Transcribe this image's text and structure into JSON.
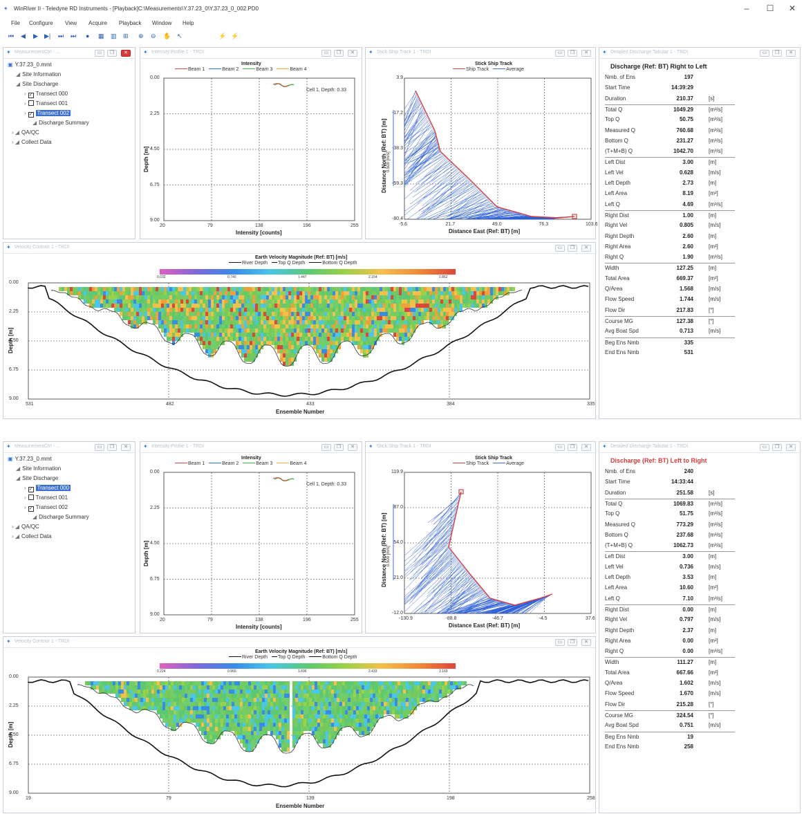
{
  "window": {
    "title": "WinRiver II - Teledyne RD Instruments - [Playback]C:\\Measurements\\Y.37.23_0\\Y.37.23_0_002.PD0"
  },
  "menu": [
    "File",
    "Configure",
    "View",
    "Acquire",
    "Playback",
    "Window",
    "Help"
  ],
  "colors": {
    "beam1": "#e04545",
    "beam2": "#3a6fd6",
    "beam3": "#48b04a",
    "beam4": "#f0b030",
    "track": "#d94040",
    "average": "#3a6fd6",
    "fill": "#2d5fd6"
  },
  "blocks": [
    {
      "tree": {
        "panel_title": "MeasurementCtrl - ...",
        "root": "Y.37.23_0.mmt",
        "site_information": "Site Information",
        "site_discharge": "Site Discharge",
        "transects": [
          {
            "label": "Transect 000",
            "checked": true,
            "selected": false
          },
          {
            "label": "Transect 001",
            "checked": false,
            "selected": false
          },
          {
            "label": "Transect 002",
            "checked": true,
            "selected": true
          }
        ],
        "discharge_summary": "Discharge Summary",
        "qaqc": "QA/QC",
        "collect": "Collect Data"
      },
      "intensity": {
        "panel_title": "Intensity Profile 1 - TRDI",
        "title": "Intensity",
        "legend": [
          "Beam 1",
          "Beam 2",
          "Beam 3",
          "Beam 4"
        ],
        "annotation": "Cell 1, Depth: 0.33",
        "y_ticks": [
          "0.00",
          "2.25",
          "4.50",
          "6.75",
          "9.00"
        ],
        "x_ticks": [
          "20",
          "79",
          "138",
          "196",
          "255"
        ],
        "xlabel": "Intensity [counts]",
        "ylabel": "Depth [m]"
      },
      "track": {
        "panel_title": "Stick Ship Track 1 - TRDI",
        "title": "Stick Ship Track",
        "legend": [
          "Ship Track",
          "Average"
        ],
        "scale_label": "0.500 [m/s]",
        "y_ticks": [
          "3.9",
          "-17.2",
          "-38.3",
          "-59.3",
          "-80.4"
        ],
        "x_ticks": [
          "-5.6",
          "21.7",
          "49.0",
          "76.3",
          "103.6"
        ],
        "xlabel": "Distance East (Ref: BT) [m]",
        "ylabel": "Distance North (Ref: BT) [m]"
      },
      "contour": {
        "panel_title": "Velocity Contour 1 - TRDI",
        "title": "Earth Velocity Magnitude (Ref: BT) [m/s]",
        "legend": [
          "River Depth",
          "Top Q Depth",
          "Bottom Q Depth"
        ],
        "scale_ticks": [
          "0.032",
          "0.740",
          "1.447",
          "2.154",
          "2.862"
        ],
        "y_ticks": [
          "0.00",
          "2.25",
          "4.50",
          "6.75",
          "9.00"
        ],
        "x_ticks": [
          "531",
          "482",
          "433",
          "384",
          "335"
        ],
        "xlabel": "Ensemble Number",
        "ylabel": "Depth [m]"
      },
      "tabular": {
        "panel_title": "Detailed Discharge Tabular 1 - TRDI",
        "heading": "Discharge (Ref: BT) Right to Left",
        "heading_color": "#222222",
        "rows": [
          {
            "k": "Nmb. of Ens",
            "v": "197",
            "u": ""
          },
          {
            "k": "Start Time",
            "v": "14:39:29",
            "u": ""
          },
          {
            "k": "Duration",
            "v": "210.37",
            "u": "[s]"
          },
          {
            "k": "Total Q",
            "v": "1049.29",
            "u": "[m³/s]",
            "sep": true
          },
          {
            "k": "Top Q",
            "v": "50.75",
            "u": "[m³/s]"
          },
          {
            "k": "Measured Q",
            "v": "760.68",
            "u": "[m³/s]"
          },
          {
            "k": "Bottom Q",
            "v": "231.27",
            "u": "[m³/s]"
          },
          {
            "k": "(T+M+B) Q",
            "v": "1042.70",
            "u": "[m³/s]"
          },
          {
            "k": "Left Dist",
            "v": "3.00",
            "u": "[m]",
            "sep": true
          },
          {
            "k": "Left Vel",
            "v": "0.628",
            "u": "[m/s]"
          },
          {
            "k": "Left Depth",
            "v": "2.73",
            "u": "[m]"
          },
          {
            "k": "Left Area",
            "v": "8.19",
            "u": "[m²]"
          },
          {
            "k": "Left Q",
            "v": "4.69",
            "u": "[m³/s]"
          },
          {
            "k": "Right Dist",
            "v": "1.00",
            "u": "[m]",
            "sep": true
          },
          {
            "k": "Right Vel",
            "v": "0.805",
            "u": "[m/s]"
          },
          {
            "k": "Right Depth",
            "v": "2.60",
            "u": "[m]"
          },
          {
            "k": "Right Area",
            "v": "2.60",
            "u": "[m²]"
          },
          {
            "k": "Right Q",
            "v": "1.90",
            "u": "[m³/s]"
          },
          {
            "k": "Width",
            "v": "127.25",
            "u": "[m]",
            "sep": true
          },
          {
            "k": "Total Area",
            "v": "669.37",
            "u": "[m²]"
          },
          {
            "k": "Q/Area",
            "v": "1.568",
            "u": "[m/s]"
          },
          {
            "k": "Flow Speed",
            "v": "1.744",
            "u": "[m/s]"
          },
          {
            "k": "Flow Dir",
            "v": "217.83",
            "u": "[°]"
          },
          {
            "k": "Course MG",
            "v": "127.38",
            "u": "[°]",
            "sep": true
          },
          {
            "k": "Avg Boat Spd",
            "v": "0.713",
            "u": "[m/s]"
          },
          {
            "k": "Beg Ens Nmb",
            "v": "335",
            "u": "",
            "sep": true
          },
          {
            "k": "End Ens Nmb",
            "v": "531",
            "u": ""
          }
        ]
      }
    },
    {
      "tree": {
        "panel_title": "MeasurementCtrl - ...",
        "root": "Y.37.23_0.mmt",
        "site_information": "Site Information",
        "site_discharge": "Site Discharge",
        "transects": [
          {
            "label": "Transect 000",
            "checked": true,
            "selected": true
          },
          {
            "label": "Transect 001",
            "checked": false,
            "selected": false
          },
          {
            "label": "Transect 002",
            "checked": true,
            "selected": false
          }
        ],
        "discharge_summary": "Discharge Summary",
        "qaqc": "QA/QC",
        "collect": "Collect Data"
      },
      "intensity": {
        "panel_title": "Intensity Profile 1 - TRDI",
        "title": "Intensity",
        "legend": [
          "Beam 1",
          "Beam 2",
          "Beam 3",
          "Beam 4"
        ],
        "annotation": "Cell 1, Depth: 0.33",
        "y_ticks": [
          "0.00",
          "2.25",
          "4.50",
          "6.75",
          "9.00"
        ],
        "x_ticks": [
          "20",
          "79",
          "138",
          "196",
          "255"
        ],
        "xlabel": "Intensity [counts]",
        "ylabel": "Depth [m]"
      },
      "track": {
        "panel_title": "Stick Ship Track 1 - TRDI",
        "title": "Stick Ship Track",
        "legend": [
          "Ship Track",
          "Average"
        ],
        "scale_label": "0.500 [m/s]",
        "y_ticks": [
          "119.9",
          "87.0",
          "54.0",
          "21.0",
          "-12.0"
        ],
        "x_ticks": [
          "-130.9",
          "-88.8",
          "-46.7",
          "-4.5",
          "37.6"
        ],
        "xlabel": "Distance East (Ref: BT) [m]",
        "ylabel": "Distance North (Ref: BT) [m]"
      },
      "contour": {
        "panel_title": "Velocity Contour 1 - TRDI",
        "title": "Earth Velocity Magnitude (Ref: BT) [m/s]",
        "legend": [
          "River Depth",
          "Top Q Depth",
          "Bottom Q Depth"
        ],
        "scale_ticks": [
          "0.224",
          "0.960",
          "1.696",
          "2.433",
          "3.169"
        ],
        "y_ticks": [
          "0.00",
          "2.25",
          "4.50",
          "6.75",
          "9.00"
        ],
        "x_ticks": [
          "19",
          "79",
          "139",
          "198",
          "258"
        ],
        "xlabel": "Ensemble Number",
        "ylabel": "Depth [m]"
      },
      "tabular": {
        "panel_title": "Detailed Discharge Tabular 1 - TRDI",
        "heading": "Discharge (Ref: BT) Left to Right",
        "heading_color": "#d83b3b",
        "rows": [
          {
            "k": "Nmb. of Ens",
            "v": "240",
            "u": ""
          },
          {
            "k": "Start Time",
            "v": "14:33:44",
            "u": ""
          },
          {
            "k": "Duration",
            "v": "251.58",
            "u": "[s]"
          },
          {
            "k": "Total Q",
            "v": "1069.83",
            "u": "[m³/s]",
            "sep": true
          },
          {
            "k": "Top Q",
            "v": "51.75",
            "u": "[m³/s]"
          },
          {
            "k": "Measured Q",
            "v": "773.29",
            "u": "[m³/s]"
          },
          {
            "k": "Bottom Q",
            "v": "237.68",
            "u": "[m³/s]"
          },
          {
            "k": "(T+M+B) Q",
            "v": "1062.73",
            "u": "[m³/s]"
          },
          {
            "k": "Left Dist",
            "v": "3.00",
            "u": "[m]",
            "sep": true
          },
          {
            "k": "Left Vel",
            "v": "0.736",
            "u": "[m/s]"
          },
          {
            "k": "Left Depth",
            "v": "3.53",
            "u": "[m]"
          },
          {
            "k": "Left Area",
            "v": "10.60",
            "u": "[m²]"
          },
          {
            "k": "Left Q",
            "v": "7.10",
            "u": "[m³/s]"
          },
          {
            "k": "Right Dist",
            "v": "0.00",
            "u": "[m]",
            "sep": true
          },
          {
            "k": "Right Vel",
            "v": "0.797",
            "u": "[m/s]"
          },
          {
            "k": "Right Depth",
            "v": "2.37",
            "u": "[m]"
          },
          {
            "k": "Right Area",
            "v": "0.00",
            "u": "[m²]"
          },
          {
            "k": "Right Q",
            "v": "0.00",
            "u": "[m³/s]"
          },
          {
            "k": "Width",
            "v": "111.27",
            "u": "[m]",
            "sep": true
          },
          {
            "k": "Total Area",
            "v": "667.66",
            "u": "[m²]"
          },
          {
            "k": "Q/Area",
            "v": "1.602",
            "u": "[m/s]"
          },
          {
            "k": "Flow Speed",
            "v": "1.670",
            "u": "[m/s]"
          },
          {
            "k": "Flow Dir",
            "v": "215.28",
            "u": "[°]"
          },
          {
            "k": "Course MG",
            "v": "324.54",
            "u": "[°]",
            "sep": true
          },
          {
            "k": "Avg Boat Spd",
            "v": "0.751",
            "u": "[m/s]"
          },
          {
            "k": "Beg Ens Nmb",
            "v": "19",
            "u": "",
            "sep": true
          },
          {
            "k": "End Ens Nmb",
            "v": "258",
            "u": ""
          }
        ]
      }
    }
  ]
}
